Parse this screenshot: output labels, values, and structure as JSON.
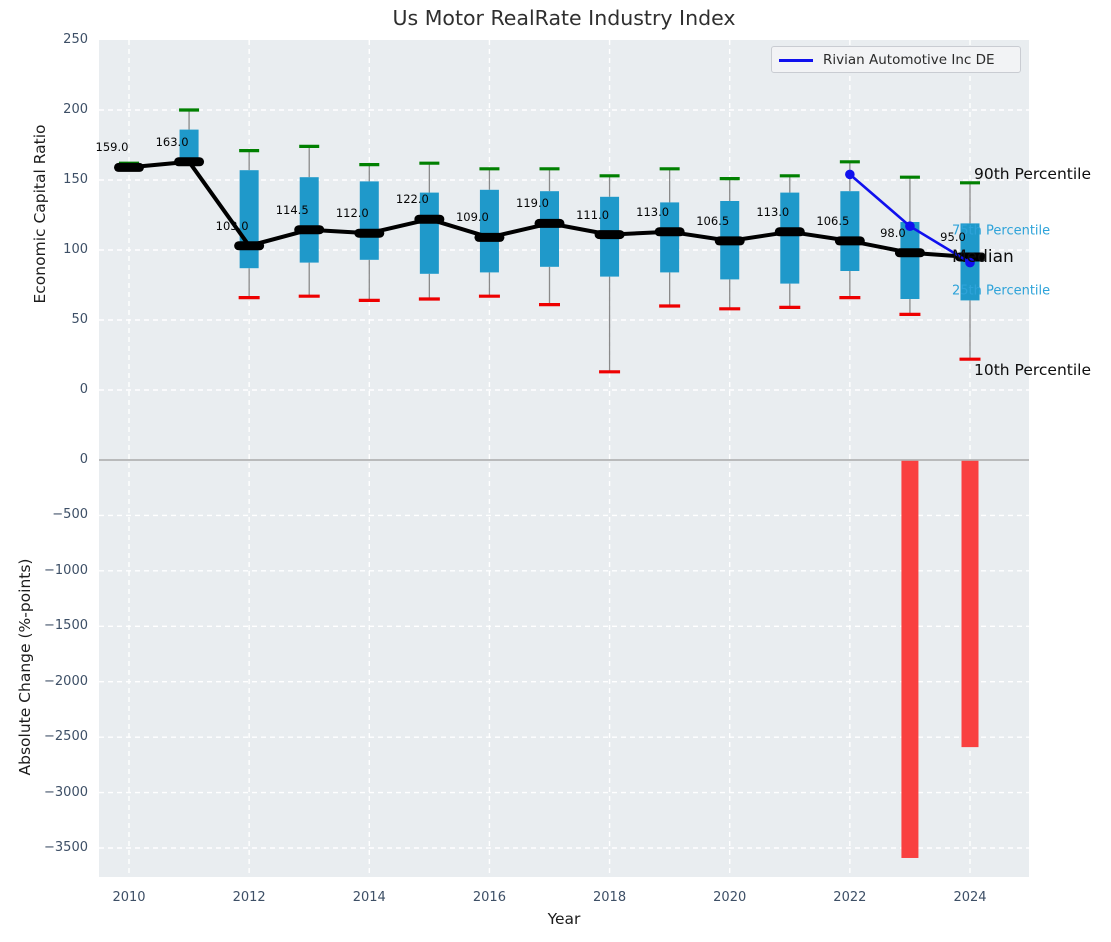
{
  "title": "Us Motor RealRate Industry Index",
  "xlabel": "Year",
  "xticks": [
    2010,
    2012,
    2014,
    2016,
    2018,
    2020,
    2022,
    2024
  ],
  "top_axis": {
    "ylabel": "Economic Capital Ratio",
    "yticks": [
      250,
      200,
      150,
      100,
      50,
      0
    ]
  },
  "bottom_axis": {
    "ylabel": "Absolute Change (%-points)",
    "yticks": [
      0,
      -500,
      -1000,
      -1500,
      -2000,
      -2500,
      -3000,
      -3500
    ]
  },
  "legend": {
    "label": "Rivian Automotive Inc DE"
  },
  "right_labels": {
    "p90": "90th Percentile",
    "p75": "75th Percentile",
    "median": "Median",
    "p25": "25th Percentile",
    "p10": "10th Percentile"
  },
  "colors": {
    "box": "#1f99ca",
    "green_cap": "#008000",
    "red_cap": "#ee0000",
    "median_line": "#000000",
    "rivian": "#1010ee",
    "bar": "#f94040",
    "zero_line": "#a9a9a9",
    "whisker": "#8a8a8a",
    "percentile_label": "#2ea3d9",
    "grid": "#ffffff",
    "plot_background": "#e9edf0"
  },
  "chart_data": [
    {
      "type": "boxplot",
      "title": "Us Motor RealRate Industry Index",
      "xlabel": "Year",
      "ylabel": "Economic Capital Ratio",
      "ylim": [
        -25,
        250
      ],
      "grid": true,
      "years": [
        2010,
        2011,
        2012,
        2013,
        2014,
        2015,
        2016,
        2017,
        2018,
        2019,
        2020,
        2021,
        2022,
        2023,
        2024
      ],
      "p90": [
        162,
        200,
        171,
        174,
        161,
        162,
        158,
        158,
        153,
        158,
        151,
        153,
        163,
        152,
        148
      ],
      "p75": [
        161,
        186,
        157,
        152,
        149,
        141,
        143,
        142,
        138,
        134,
        135,
        141,
        142,
        120,
        119
      ],
      "median": [
        159,
        163,
        103,
        114.5,
        112,
        122,
        109,
        119,
        111,
        113,
        106.5,
        113,
        106.5,
        98,
        95
      ],
      "p25": [
        157,
        163,
        87,
        91,
        93,
        83,
        84,
        88,
        81,
        84,
        79,
        76,
        85,
        65,
        64
      ],
      "p10": [
        null,
        null,
        66,
        67,
        64,
        65,
        67,
        61,
        13,
        60,
        58,
        59,
        66,
        54,
        22
      ],
      "median_labels": [
        "159.0",
        "163.0",
        "103.0",
        "114.5",
        "112.0",
        "122.0",
        "109.0",
        "119.0",
        "111.0",
        "113.0",
        "106.5",
        "113.0",
        "106.5",
        "98.0",
        "95.0"
      ],
      "overlay_series": {
        "name": "Rivian Automotive Inc DE",
        "x": [
          2022,
          2023,
          2024
        ],
        "y": [
          154,
          117,
          91
        ]
      },
      "legend_position": "upper right"
    },
    {
      "type": "bar",
      "xlabel": "Year",
      "ylabel": "Absolute Change (%-points)",
      "ylim": [
        -3740,
        320
      ],
      "grid": true,
      "categories": [
        2023,
        2024
      ],
      "values": [
        -3590,
        -2590
      ]
    }
  ]
}
